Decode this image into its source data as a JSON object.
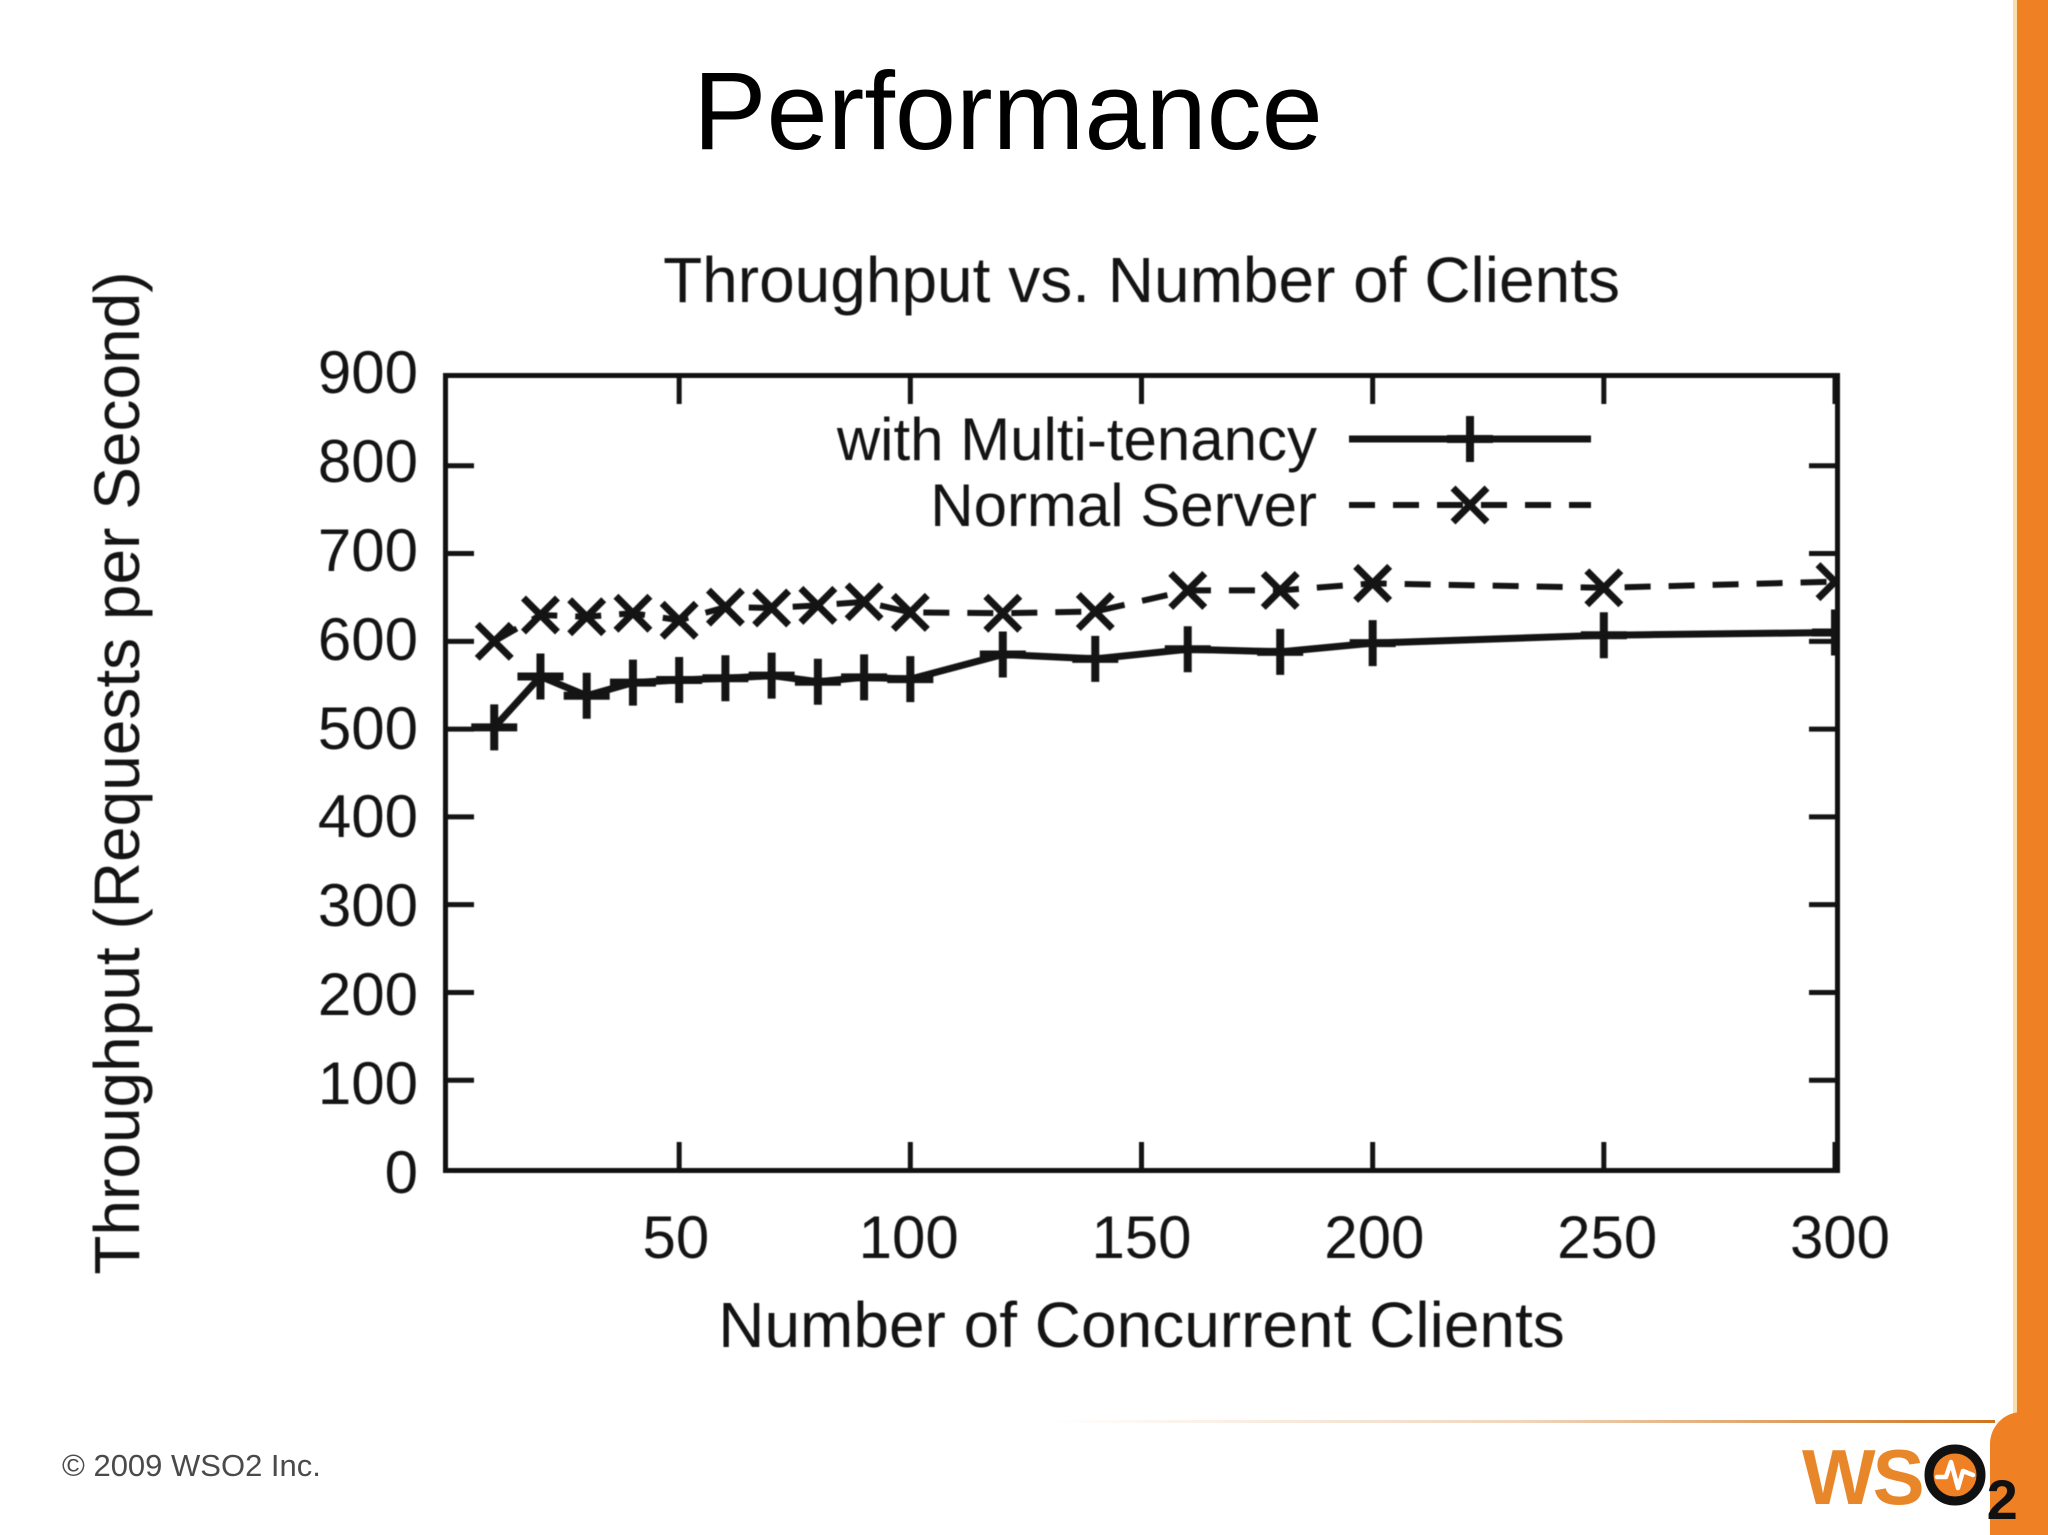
{
  "slide": {
    "title": "Performance"
  },
  "footer": {
    "copyright": "© 2009 WSO2 Inc."
  },
  "logo": {
    "ws": "WS",
    "two": "2"
  },
  "theme": {
    "orange": "#EF8023",
    "cream_edge": "#F7E0AC",
    "logo_orange": "#E8872A",
    "ink": "#141414"
  },
  "chart_data": {
    "type": "line",
    "title": "Throughput vs. Number of Clients",
    "xlabel": "Number of Concurrent Clients",
    "ylabel": "Throughput (Requests per Second)",
    "xlim": [
      0,
      300
    ],
    "ylim": [
      0,
      900
    ],
    "x_ticks": [
      50,
      100,
      150,
      200,
      250,
      300
    ],
    "y_ticks": [
      0,
      100,
      200,
      300,
      400,
      500,
      600,
      700,
      800,
      900
    ],
    "grid": false,
    "legend_position": "inside top center",
    "x": [
      10,
      20,
      30,
      40,
      50,
      60,
      70,
      80,
      90,
      100,
      120,
      140,
      160,
      180,
      200,
      250,
      300
    ],
    "series": [
      {
        "name": "with Multi-tenancy",
        "line": "solid",
        "marker": "plus",
        "values": [
          502,
          560,
          538,
          553,
          556,
          558,
          561,
          554,
          559,
          557,
          585,
          580,
          591,
          588,
          598,
          607,
          610
        ]
      },
      {
        "name": "Normal Server",
        "line": "dashed",
        "marker": "cross",
        "values": [
          600,
          630,
          628,
          632,
          624,
          639,
          638,
          641,
          645,
          633,
          632,
          634,
          658,
          658,
          666,
          661,
          668
        ]
      }
    ]
  }
}
